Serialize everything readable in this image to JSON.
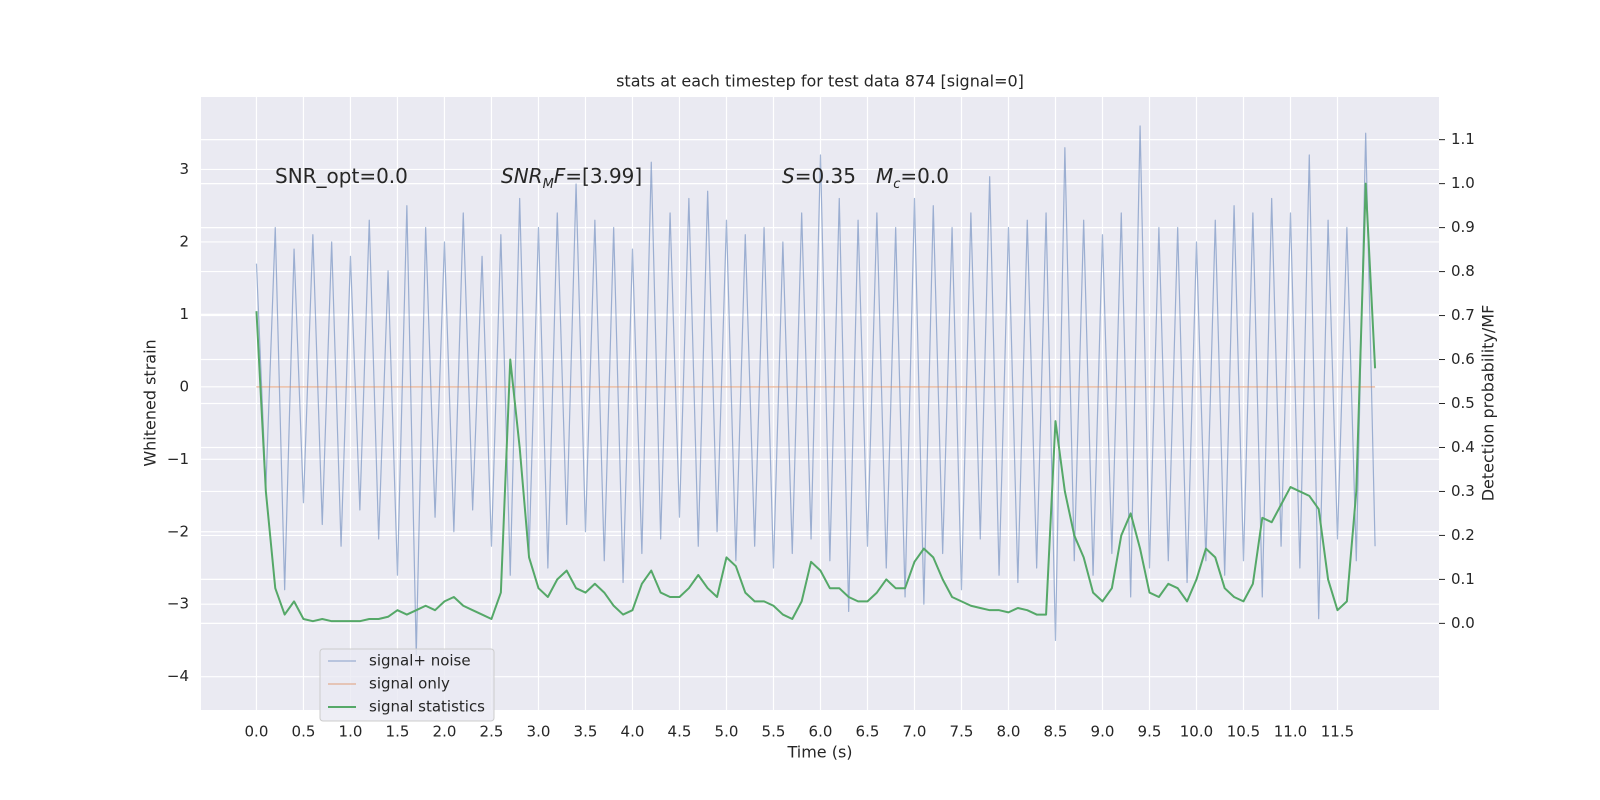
{
  "chart_data": {
    "type": "line",
    "title": "stats at each timestep for test data 874 [signal=0]",
    "xlabel": "Time (s)",
    "ylabel": "Whitened strain",
    "y2label": "Detection probability/MF",
    "annotations": [
      [
        {
          "text": "SNR_opt=0.0"
        }
      ],
      [
        {
          "text": "SNR",
          "italic": true
        },
        {
          "text": "M",
          "italic": true,
          "sub": true
        },
        {
          "text": "F",
          "italic": true
        },
        {
          "text": "=[3.99]"
        }
      ],
      [
        {
          "text": "S",
          "italic": true
        },
        {
          "text": "=0.35"
        }
      ],
      [
        {
          "text": "M",
          "italic": true
        },
        {
          "text": "c",
          "italic": true,
          "sub": true
        },
        {
          "text": "=0.0"
        }
      ]
    ],
    "x": [
      0,
      0.1,
      0.2,
      0.3,
      0.4,
      0.5,
      0.6,
      0.7,
      0.8,
      0.9,
      1,
      1.1,
      1.2,
      1.3,
      1.4,
      1.5,
      1.6,
      1.7,
      1.8,
      1.9,
      2,
      2.1,
      2.2,
      2.3,
      2.4,
      2.5,
      2.6,
      2.7,
      2.8,
      2.9,
      3,
      3.1,
      3.2,
      3.3,
      3.4,
      3.5,
      3.6,
      3.7,
      3.8,
      3.9,
      4,
      4.1,
      4.2,
      4.3,
      4.4,
      4.5,
      4.6,
      4.7,
      4.8,
      4.9,
      5,
      5.1,
      5.2,
      5.3,
      5.4,
      5.5,
      5.6,
      5.7,
      5.8,
      5.9,
      6,
      6.1,
      6.2,
      6.3,
      6.4,
      6.5,
      6.6,
      6.7,
      6.8,
      6.9,
      7,
      7.1,
      7.2,
      7.3,
      7.4,
      7.5,
      7.6,
      7.7,
      7.8,
      7.9,
      8,
      8.1,
      8.2,
      8.3,
      8.4,
      8.5,
      8.6,
      8.7,
      8.8,
      8.9,
      9,
      9.1,
      9.2,
      9.3,
      9.4,
      9.5,
      9.6,
      9.7,
      9.8,
      9.9,
      10,
      10.1,
      10.2,
      10.3,
      10.4,
      10.5,
      10.6,
      10.7,
      10.8,
      10.9,
      11,
      11.1,
      11.2,
      11.3,
      11.4,
      11.5,
      11.6,
      11.7,
      11.8,
      11.9
    ],
    "series": [
      {
        "name": "signal+ noise",
        "color": "#4c72b0",
        "alpha": 0.5,
        "width": 1.2,
        "values": [
          1.7,
          -1.4,
          2.2,
          -2.8,
          1.9,
          -1.6,
          2.1,
          -1.9,
          2.0,
          -2.2,
          1.8,
          -1.7,
          2.3,
          -2.1,
          1.6,
          -2.6,
          2.5,
          -3.7,
          2.2,
          -1.8,
          2.0,
          -2.0,
          2.4,
          -1.7,
          1.8,
          -2.2,
          2.1,
          -2.6,
          2.6,
          -2.3,
          2.2,
          -2.5,
          2.4,
          -1.9,
          2.8,
          -2.0,
          2.3,
          -2.4,
          2.2,
          -2.7,
          1.9,
          -2.3,
          3.1,
          -2.1,
          2.4,
          -1.8,
          2.6,
          -2.2,
          2.7,
          -2.0,
          2.3,
          -2.4,
          2.1,
          -2.2,
          2.2,
          -2.5,
          2.0,
          -2.3,
          2.4,
          -2.1,
          3.2,
          -2.4,
          2.6,
          -3.1,
          2.3,
          -2.2,
          2.4,
          -2.5,
          2.2,
          -2.9,
          2.6,
          -3.0,
          2.5,
          -2.3,
          2.2,
          -2.8,
          2.4,
          -2.1,
          2.9,
          -2.6,
          2.2,
          -2.7,
          2.3,
          -2.5,
          2.4,
          -3.5,
          3.3,
          -2.4,
          2.3,
          -2.6,
          2.1,
          -2.3,
          2.4,
          -2.9,
          3.6,
          -2.5,
          2.2,
          -2.4,
          2.2,
          -2.7,
          2.0,
          -2.4,
          2.3,
          -2.6,
          2.5,
          -2.4,
          2.4,
          -2.9,
          2.6,
          -2.2,
          2.4,
          -2.5,
          3.2,
          -3.2,
          2.3,
          -2.1,
          2.2,
          -2.4,
          3.5,
          -2.2
        ]
      },
      {
        "name": "signal only",
        "color": "#dd8452",
        "alpha": 0.5,
        "width": 1.5,
        "values": [
          0,
          0,
          0,
          0,
          0,
          0,
          0,
          0,
          0,
          0,
          0,
          0,
          0,
          0,
          0,
          0,
          0,
          0,
          0,
          0,
          0,
          0,
          0,
          0,
          0,
          0,
          0,
          0,
          0,
          0,
          0,
          0,
          0,
          0,
          0,
          0,
          0,
          0,
          0,
          0,
          0,
          0,
          0,
          0,
          0,
          0,
          0,
          0,
          0,
          0,
          0,
          0,
          0,
          0,
          0,
          0,
          0,
          0,
          0,
          0,
          0,
          0,
          0,
          0,
          0,
          0,
          0,
          0,
          0,
          0,
          0,
          0,
          0,
          0,
          0,
          0,
          0,
          0,
          0,
          0,
          0,
          0,
          0,
          0,
          0,
          0,
          0,
          0,
          0,
          0,
          0,
          0,
          0,
          0,
          0,
          0,
          0,
          0,
          0,
          0,
          0,
          0,
          0,
          0,
          0,
          0,
          0,
          0,
          0,
          0,
          0,
          0,
          0,
          0,
          0,
          0,
          0,
          0,
          0,
          0
        ]
      },
      {
        "name": "signal statistics",
        "color": "#55a868",
        "alpha": 1,
        "width": 2,
        "axis": "y2",
        "values": [
          0.71,
          0.3,
          0.08,
          0.02,
          0.05,
          0.01,
          0.005,
          0.01,
          0.005,
          0.005,
          0.005,
          0.005,
          0.01,
          0.01,
          0.015,
          0.03,
          0.02,
          0.03,
          0.04,
          0.03,
          0.05,
          0.06,
          0.04,
          0.03,
          0.02,
          0.01,
          0.07,
          0.6,
          0.4,
          0.15,
          0.08,
          0.06,
          0.1,
          0.12,
          0.08,
          0.07,
          0.09,
          0.07,
          0.04,
          0.02,
          0.03,
          0.09,
          0.12,
          0.07,
          0.06,
          0.06,
          0.08,
          0.11,
          0.08,
          0.06,
          0.15,
          0.13,
          0.07,
          0.05,
          0.05,
          0.04,
          0.02,
          0.01,
          0.05,
          0.14,
          0.12,
          0.08,
          0.08,
          0.06,
          0.05,
          0.05,
          0.07,
          0.1,
          0.08,
          0.08,
          0.14,
          0.17,
          0.15,
          0.1,
          0.06,
          0.05,
          0.04,
          0.035,
          0.03,
          0.03,
          0.025,
          0.035,
          0.03,
          0.02,
          0.02,
          0.46,
          0.3,
          0.2,
          0.15,
          0.07,
          0.05,
          0.08,
          0.2,
          0.25,
          0.17,
          0.07,
          0.06,
          0.09,
          0.08,
          0.05,
          0.1,
          0.17,
          0.15,
          0.08,
          0.06,
          0.05,
          0.09,
          0.24,
          0.23,
          0.27,
          0.31,
          0.3,
          0.29,
          0.26,
          0.1,
          0.03,
          0.05,
          0.3,
          1.0,
          0.58
        ]
      }
    ],
    "xlim": [
      -0.59,
      12.58
    ],
    "xticks": [
      {
        "value": 0,
        "label": "0.0"
      },
      0.5,
      {
        "value": 1,
        "label": "1.0"
      },
      1.5,
      {
        "value": 2,
        "label": "2.0"
      },
      2.5,
      {
        "value": 3,
        "label": "3.0"
      },
      3.5,
      {
        "value": 4,
        "label": "4.0"
      },
      4.5,
      {
        "value": 5,
        "label": "5.0"
      },
      5.5,
      {
        "value": 6,
        "label": "6.0"
      },
      6.5,
      {
        "value": 7,
        "label": "7.0"
      },
      7.5,
      {
        "value": 8,
        "label": "8.0"
      },
      8.5,
      {
        "value": 9,
        "label": "9.0"
      },
      9.5,
      {
        "value": 10,
        "label": "10.0"
      },
      10.5,
      {
        "value": 11,
        "label": "11.0"
      },
      11.5
    ],
    "ylim": [
      -4.46,
      4.0
    ],
    "yticks": [
      {
        "value": -4,
        "label": "−4"
      },
      {
        "value": -3,
        "label": "−3"
      },
      {
        "value": -2,
        "label": "−2"
      },
      {
        "value": -1,
        "label": "−1"
      },
      0,
      1,
      2,
      3
    ],
    "y2lim": [
      -0.197,
      1.197
    ],
    "y2ticks": [
      {
        "value": 0,
        "label": "0.0"
      },
      0.1,
      0.2,
      0.3,
      0.4,
      0.5,
      0.6,
      0.7,
      0.8,
      0.9,
      {
        "value": 1,
        "label": "1.0"
      },
      1.1
    ],
    "grid": true,
    "legend": "lower left"
  }
}
